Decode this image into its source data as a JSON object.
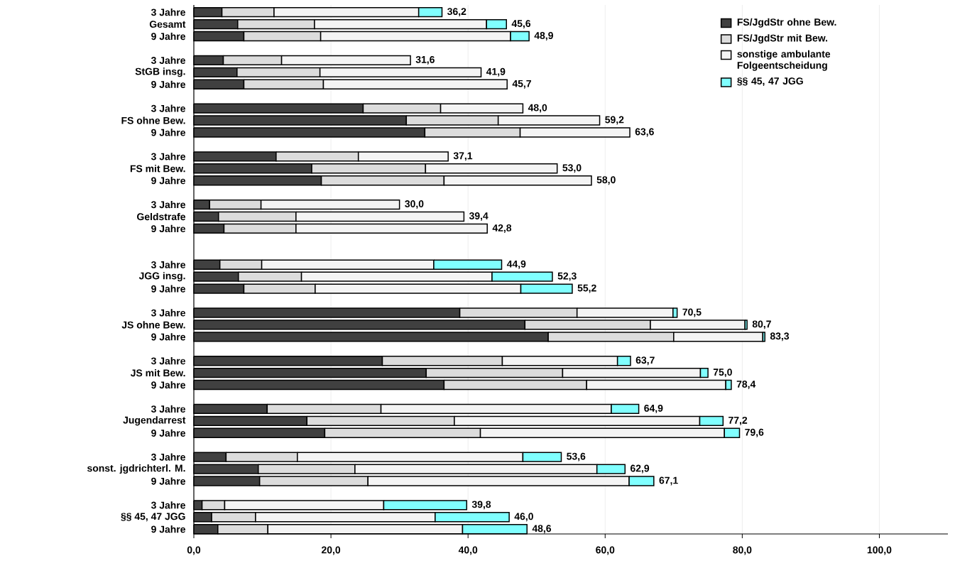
{
  "chart_data": {
    "type": "bar",
    "orientation": "horizontal",
    "stacked": true,
    "categories": [
      "3 Jahre",
      "Gesamt",
      "9 Jahre",
      null,
      "3 Jahre",
      "StGB insg.",
      "9 Jahre",
      null,
      "3 Jahre",
      "FS ohne Bew.",
      "9 Jahre",
      null,
      "3 Jahre",
      "FS mit Bew.",
      "9 Jahre",
      null,
      "3 Jahre",
      "Geldstrafe",
      "9 Jahre",
      null,
      null,
      "3 Jahre",
      "JGG insg.",
      "9 Jahre",
      null,
      "3 Jahre",
      "JS ohne Bew.",
      "9 Jahre",
      null,
      "3 Jahre",
      "JS mit Bew.",
      "9 Jahre",
      null,
      "3 Jahre",
      "Jugendarrest",
      "9 Jahre",
      null,
      "3 Jahre",
      "sonst. jgdrichterl. M.",
      "9 Jahre",
      null,
      "3 Jahre",
      "§§ 45, 47 JGG",
      "9 Jahre"
    ],
    "series": [
      {
        "name": "FS/JgdStr ohne Bew.",
        "color": "#404040",
        "values": [
          4.1,
          6.4,
          7.3,
          null,
          4.3,
          6.3,
          7.3,
          null,
          24.7,
          31.0,
          33.7,
          null,
          12.0,
          17.2,
          18.6,
          null,
          2.3,
          3.6,
          4.4,
          null,
          null,
          3.8,
          6.5,
          7.3,
          null,
          38.8,
          48.3,
          51.7,
          null,
          27.5,
          33.9,
          36.5,
          null,
          10.7,
          16.5,
          19.1,
          null,
          4.7,
          9.4,
          9.6,
          null,
          1.2,
          2.6,
          3.5
        ]
      },
      {
        "name": "FS/JgdStr mit Bew.",
        "color": "#dcdcdc",
        "values": [
          7.6,
          11.2,
          11.2,
          null,
          8.5,
          12.1,
          11.6,
          null,
          11.3,
          13.4,
          13.9,
          null,
          12.0,
          16.6,
          17.9,
          null,
          7.5,
          11.3,
          10.5,
          null,
          null,
          6.1,
          9.2,
          10.4,
          null,
          17.1,
          18.3,
          18.3,
          null,
          17.5,
          19.9,
          20.8,
          null,
          16.6,
          21.5,
          22.7,
          null,
          10.4,
          14.1,
          15.8,
          null,
          3.3,
          6.4,
          7.3
        ]
      },
      {
        "name": "sonstige ambulante Folgeentscheidung",
        "color": "#f4f4f4",
        "values": [
          21.1,
          25.1,
          27.7,
          null,
          18.8,
          23.5,
          26.8,
          null,
          12.0,
          14.8,
          16.0,
          null,
          13.1,
          19.2,
          21.5,
          null,
          20.2,
          24.5,
          27.9,
          null,
          null,
          25.1,
          27.8,
          30.0,
          null,
          14.0,
          13.8,
          13.0,
          null,
          16.8,
          20.1,
          20.3,
          null,
          33.6,
          35.8,
          35.6,
          null,
          32.9,
          35.3,
          38.1,
          null,
          23.2,
          26.2,
          28.4
        ]
      },
      {
        "name": "§§ 45, 47 JGG",
        "color": "#80ffff",
        "values": [
          3.4,
          2.9,
          2.7,
          null,
          null,
          null,
          null,
          null,
          null,
          null,
          null,
          null,
          null,
          null,
          null,
          null,
          null,
          null,
          null,
          null,
          null,
          9.9,
          8.8,
          7.5,
          null,
          0.6,
          0.3,
          0.3,
          null,
          1.9,
          1.1,
          0.8,
          null,
          4.0,
          3.4,
          2.2,
          null,
          5.6,
          4.1,
          3.6,
          null,
          12.1,
          10.8,
          9.4
        ]
      }
    ],
    "totals": [
      "36,2",
      "45,6",
      "48,9",
      null,
      "31,6",
      "41,9",
      "45,7",
      null,
      "48,0",
      "59,2",
      "63,6",
      null,
      "37,1",
      "53,0",
      "58,0",
      null,
      "30,0",
      "39,4",
      "42,8",
      null,
      null,
      "44,9",
      "52,3",
      "55,2",
      null,
      "70,5",
      "80,7",
      "83,3",
      null,
      "63,7",
      "75,0",
      "78,4",
      null,
      "64,9",
      "77,2",
      "79,6",
      null,
      "53,6",
      "62,9",
      "67,1",
      null,
      "39,8",
      "46,0",
      "48,6"
    ],
    "xlim": [
      0,
      110
    ],
    "xticks": [
      {
        "value": 0,
        "label": "0,0"
      },
      {
        "value": 20,
        "label": "20,0"
      },
      {
        "value": 40,
        "label": "40,0"
      },
      {
        "value": 60,
        "label": "60,0"
      },
      {
        "value": 80,
        "label": "80,0"
      },
      {
        "value": 100,
        "label": "100,0"
      }
    ],
    "grid": "x",
    "legend": "top right"
  }
}
